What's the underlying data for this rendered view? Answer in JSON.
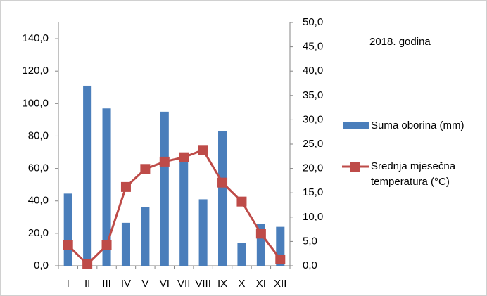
{
  "chart_data": {
    "type": "bar",
    "annotation": "2018. godina",
    "categories": [
      "I",
      "II",
      "III",
      "IV",
      "V",
      "VI",
      "VII",
      "VIII",
      "IX",
      "X",
      "XI",
      "XII"
    ],
    "series": [
      {
        "name": "Suma oborina (mm)",
        "type": "bar",
        "color": "#4a7ebb",
        "axis": "y",
        "values": [
          44.5,
          111,
          97,
          26.5,
          36,
          95,
          64,
          41,
          83,
          14,
          26,
          24
        ]
      },
      {
        "name": "Srednja mjesečna temperatura (°C)",
        "type": "line",
        "color": "#be4b48",
        "axis": "y2",
        "values": [
          4.2,
          0.3,
          4.2,
          16.2,
          19.9,
          21.4,
          22.3,
          23.8,
          17.1,
          13.2,
          6.6,
          1.3
        ]
      }
    ],
    "ylim": [
      0,
      150
    ],
    "yticks": [
      {
        "value": 0,
        "label": "0,0"
      },
      {
        "value": 20,
        "label": "20,0"
      },
      {
        "value": 40,
        "label": "40,0"
      },
      {
        "value": 60,
        "label": "60,0"
      },
      {
        "value": 80,
        "label": "80,0"
      },
      {
        "value": 100,
        "label": "100,0"
      },
      {
        "value": 120,
        "label": "120,0"
      },
      {
        "value": 140,
        "label": "140,0"
      }
    ],
    "y2lim": [
      0,
      50
    ],
    "y2ticks": [
      {
        "value": 0,
        "label": "0,0"
      },
      {
        "value": 5,
        "label": "5,0"
      },
      {
        "value": 10,
        "label": "10,0"
      },
      {
        "value": 15,
        "label": "15,0"
      },
      {
        "value": 20,
        "label": "20,0"
      },
      {
        "value": 25,
        "label": "25,0"
      },
      {
        "value": 30,
        "label": "30,0"
      },
      {
        "value": 35,
        "label": "35,0"
      },
      {
        "value": 40,
        "label": "40,0"
      },
      {
        "value": 45,
        "label": "45,0"
      },
      {
        "value": 50,
        "label": "50,0"
      }
    ],
    "grid": false
  }
}
